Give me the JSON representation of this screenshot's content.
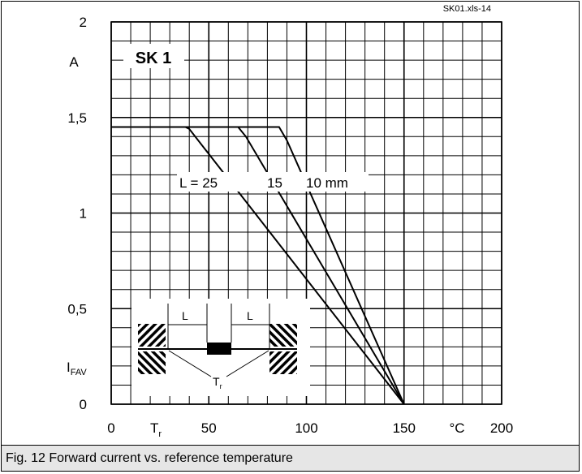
{
  "caption": "Fig. 12 Forward current vs. reference temperature",
  "chart_data": {
    "type": "line",
    "file_label": "SK01.xls-14",
    "title": "SK 1",
    "ylabel": "A",
    "ylabel_symbol": "I",
    "ylabel_subscript": "FAV",
    "xlabel_symbol": "T",
    "xlabel_subscript": "r",
    "xunit": "°C",
    "xlim": [
      0,
      200
    ],
    "ylim": [
      0,
      2
    ],
    "grid": true,
    "x_ticks": [
      {
        "value": 0,
        "label": "0"
      },
      {
        "value": 50,
        "label": "50"
      },
      {
        "value": 100,
        "label": "100"
      },
      {
        "value": 150,
        "label": "150"
      },
      {
        "value": 200,
        "label": "200"
      }
    ],
    "y_ticks": [
      {
        "value": 0,
        "label": "0"
      },
      {
        "value": 0.5,
        "label": "0,5"
      },
      {
        "value": 1,
        "label": "1"
      },
      {
        "value": 1.5,
        "label": "1,5"
      },
      {
        "value": 2,
        "label": "2"
      }
    ],
    "curve_label": {
      "prefix": "L = ",
      "values": [
        "25",
        "15",
        "10 mm"
      ]
    },
    "series": [
      {
        "values": [
          [
            0,
            1.45
          ],
          [
            38,
            1.45
          ],
          [
            40,
            1.44
          ],
          [
            150,
            0
          ]
        ]
      },
      {
        "values": [
          [
            0,
            1.45
          ],
          [
            65,
            1.45
          ],
          [
            69,
            1.4
          ],
          [
            150,
            0
          ]
        ]
      },
      {
        "values": [
          [
            0,
            1.45
          ],
          [
            86,
            1.45
          ],
          [
            90,
            1.38
          ],
          [
            150,
            0
          ]
        ]
      }
    ],
    "inset": {
      "lead_label": "L",
      "temp_symbol": "T",
      "temp_subscript": "r"
    }
  }
}
